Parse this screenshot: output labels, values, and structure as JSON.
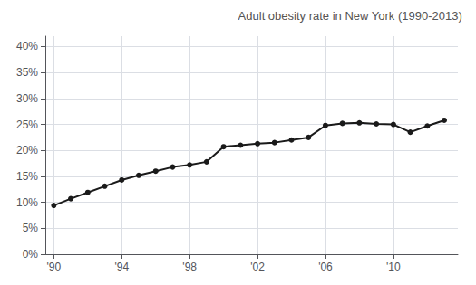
{
  "chart_data": {
    "type": "line",
    "title": "Adult obesity rate in New York (1990-2013)",
    "x": [
      1990,
      1991,
      1992,
      1993,
      1994,
      1995,
      1996,
      1997,
      1998,
      1999,
      2000,
      2001,
      2002,
      2003,
      2004,
      2005,
      2006,
      2007,
      2008,
      2009,
      2010,
      2011,
      2012,
      2013
    ],
    "values": [
      0.094,
      0.107,
      0.119,
      0.131,
      0.143,
      0.152,
      0.16,
      0.168,
      0.172,
      0.178,
      0.207,
      0.21,
      0.213,
      0.215,
      0.22,
      0.225,
      0.248,
      0.252,
      0.253,
      0.251,
      0.25,
      0.235,
      0.247,
      0.258
    ],
    "color": "#1a1a1a",
    "marker": "circle",
    "xlim": [
      1989.5,
      2013.8
    ],
    "xticks": [
      {
        "value": 1990,
        "label": "'90"
      },
      {
        "value": 1994,
        "label": "'94"
      },
      {
        "value": 1998,
        "label": "'98"
      },
      {
        "value": 2002,
        "label": "'02"
      },
      {
        "value": 2006,
        "label": "'06"
      },
      {
        "value": 2010,
        "label": "'10"
      }
    ],
    "ylim": [
      0.0,
      0.42
    ],
    "yticks": [
      {
        "value": 0.0,
        "label": "0%"
      },
      {
        "value": 0.05,
        "label": "5%"
      },
      {
        "value": 0.1,
        "label": "10%"
      },
      {
        "value": 0.15,
        "label": "15%"
      },
      {
        "value": 0.2,
        "label": "20%"
      },
      {
        "value": 0.25,
        "label": "25%"
      },
      {
        "value": 0.3,
        "label": "30%"
      },
      {
        "value": 0.35,
        "label": "35%"
      },
      {
        "value": 0.4,
        "label": "40%"
      }
    ],
    "grid": true
  }
}
